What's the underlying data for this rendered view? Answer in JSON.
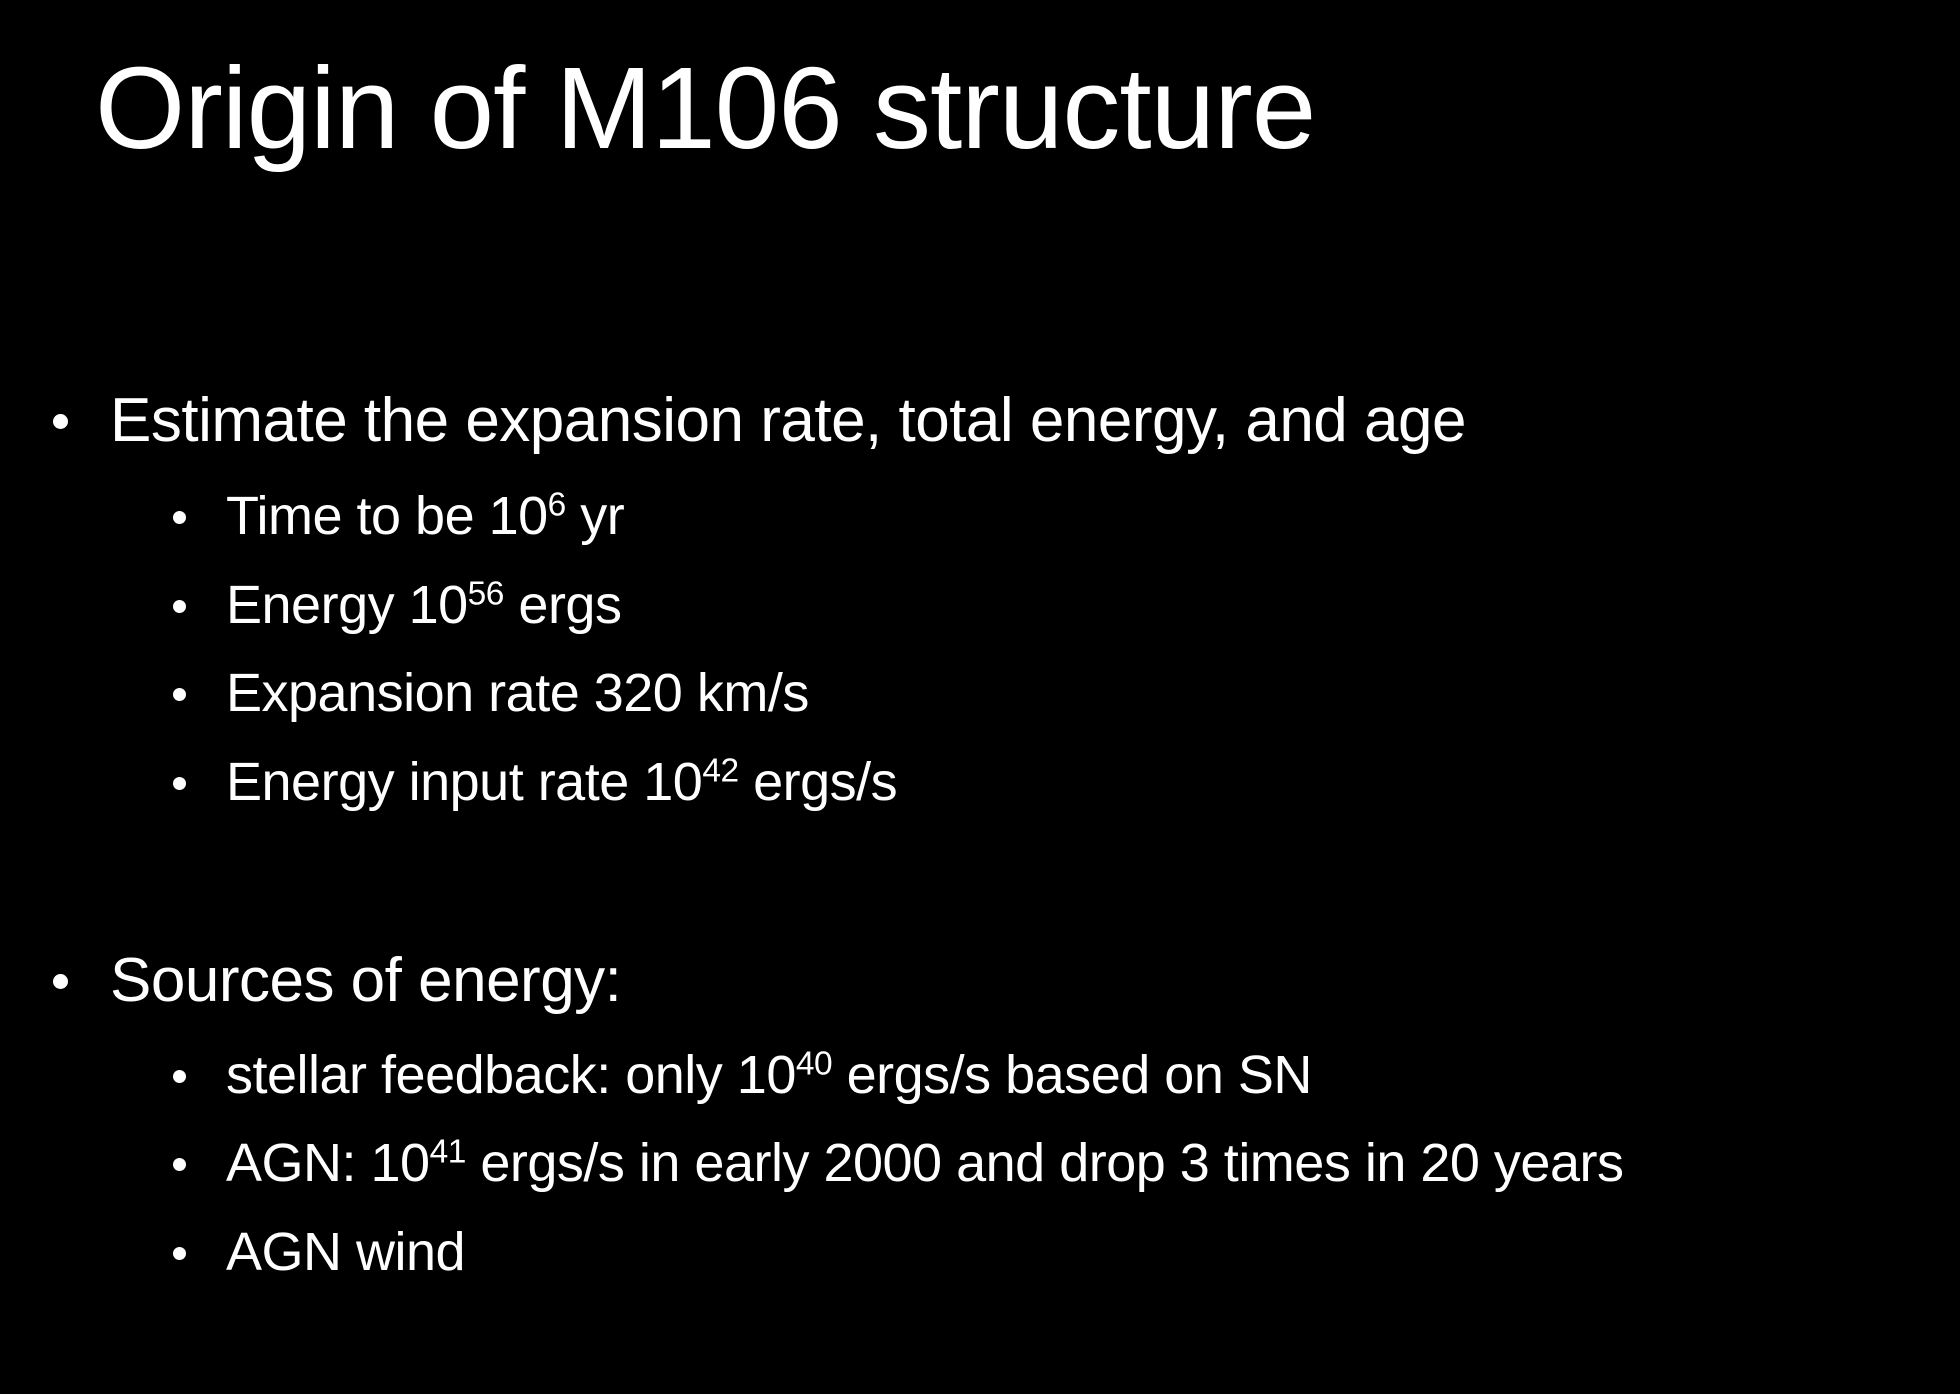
{
  "slide": {
    "title": "Origin of M106 structure",
    "sections": [
      {
        "heading": "Estimate the expansion rate, total energy, and age",
        "items": [
          {
            "pre": "Time to be 10",
            "sup": "6",
            "post": " yr"
          },
          {
            "pre": "Energy 10",
            "sup": "56",
            "post": " ergs"
          },
          {
            "pre": "Expansion rate 320 km/s",
            "sup": "",
            "post": ""
          },
          {
            "pre": "Energy input rate 10",
            "sup": "42",
            "post": " ergs/s"
          }
        ]
      },
      {
        "heading": "Sources of energy:",
        "items": [
          {
            "pre": "stellar feedback: only 10",
            "sup": "40",
            "post": " ergs/s based on SN"
          },
          {
            "pre": "AGN: 10",
            "sup": "41",
            "post": " ergs/s in early 2000 and drop 3 times in 20 years"
          },
          {
            "pre": "AGN wind",
            "sup": "",
            "post": ""
          }
        ]
      }
    ]
  }
}
